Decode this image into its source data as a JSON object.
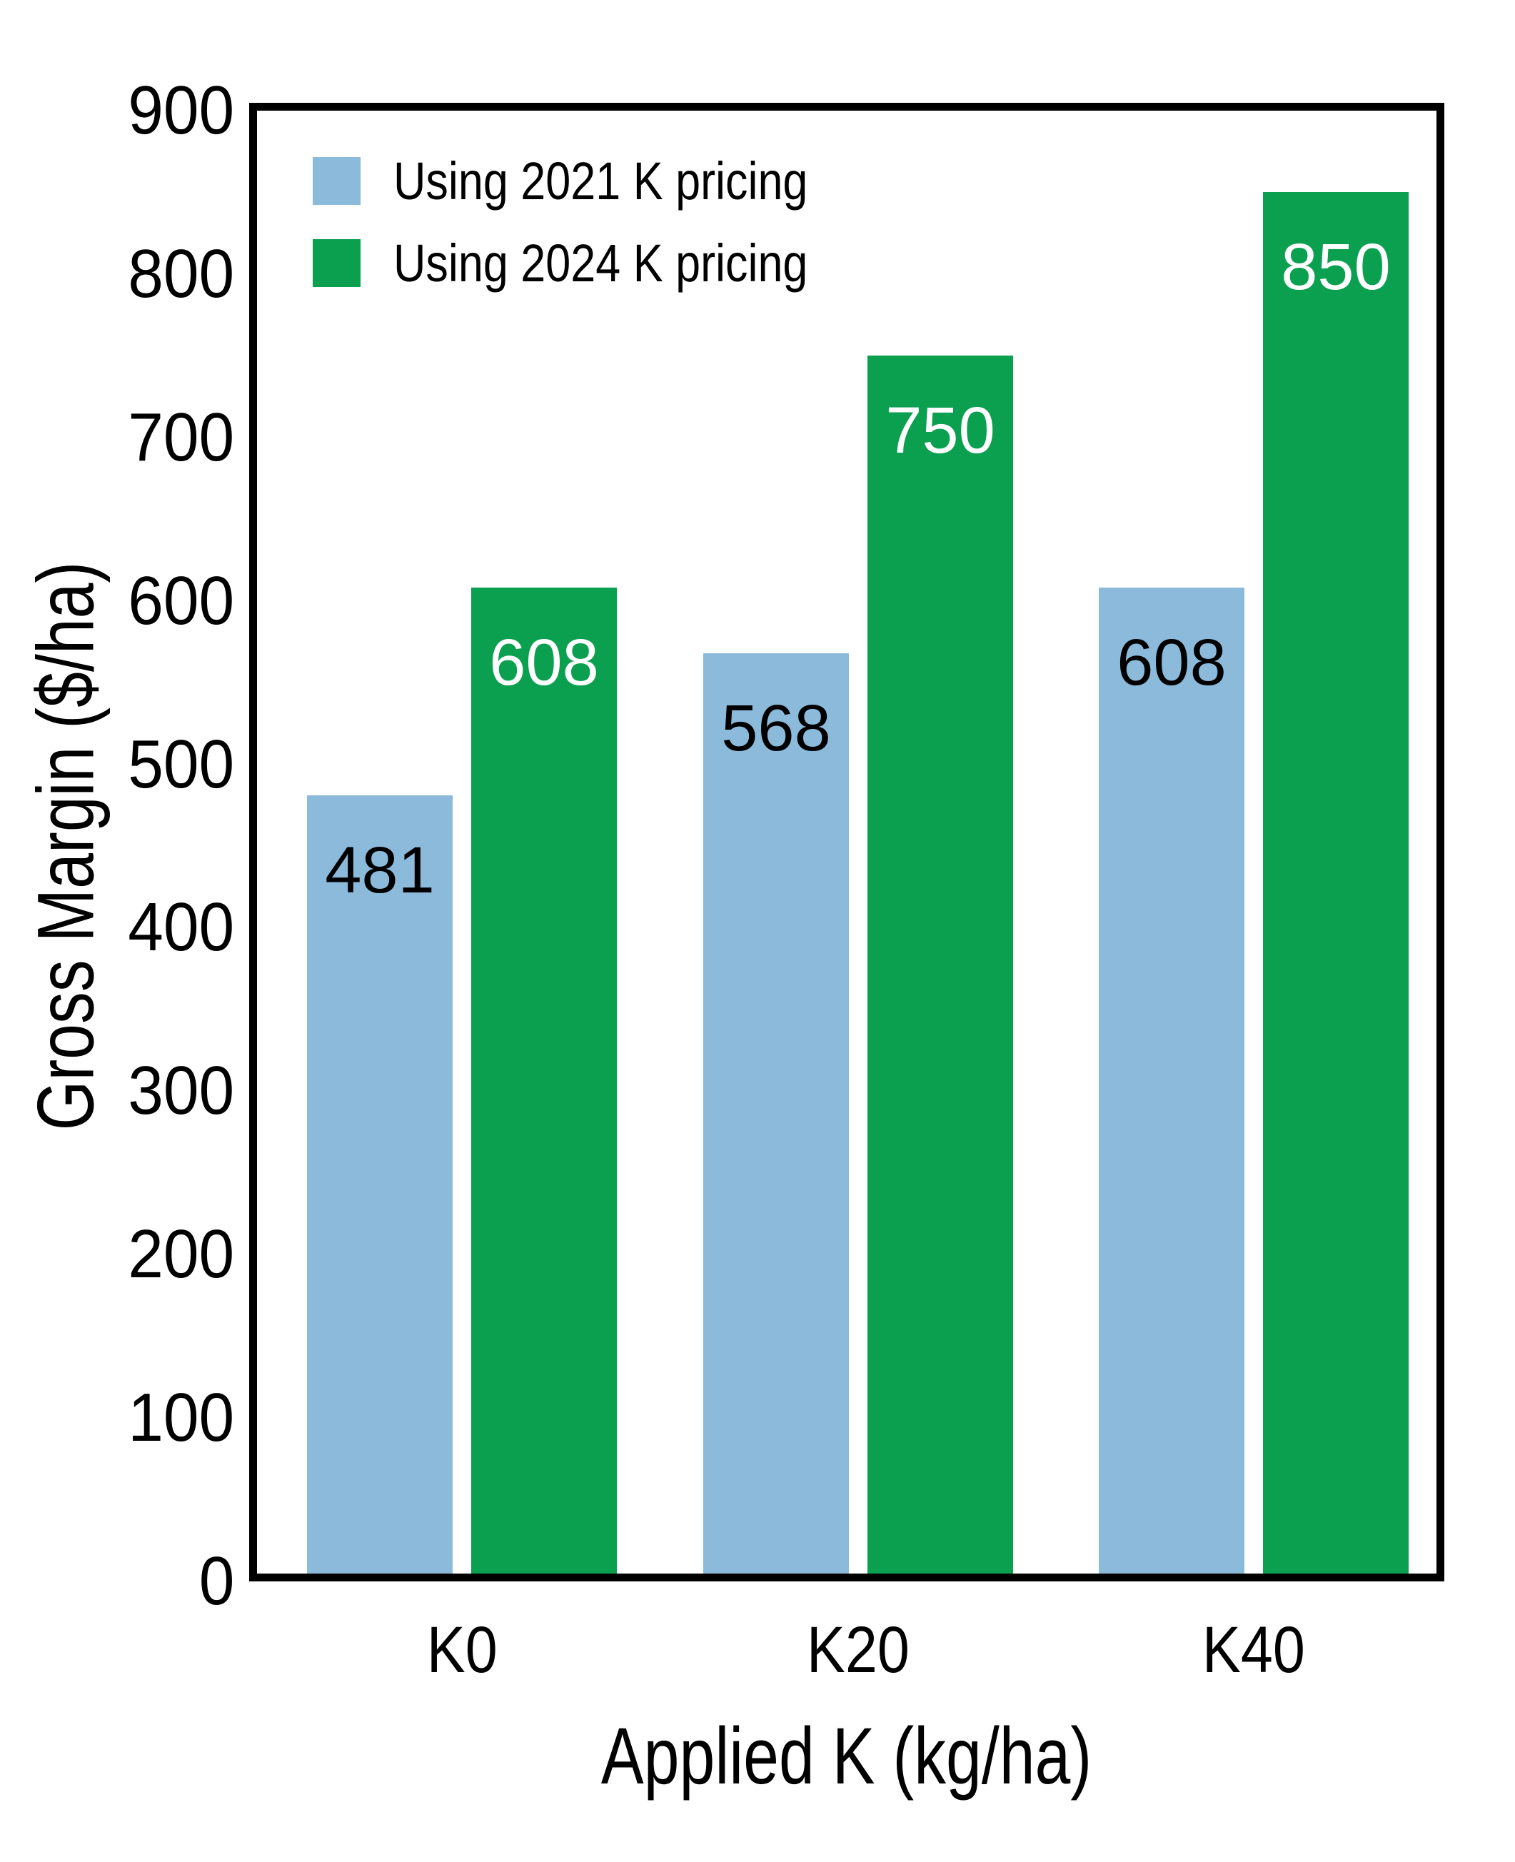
{
  "figure": {
    "background": "#ffffff",
    "frame_color": "#000000"
  },
  "chart_data": {
    "type": "bar",
    "title": "",
    "categories": [
      "K0",
      "K20",
      "K40"
    ],
    "series": [
      {
        "name": "Using 2021 K pricing",
        "color": "#8cbadb",
        "label_color": "#000000",
        "values": [
          481,
          568,
          608
        ]
      },
      {
        "name": "Using 2024 K pricing",
        "color": "#0aa04f",
        "label_color": "#ffffff",
        "values": [
          608,
          750,
          850
        ]
      }
    ],
    "bar_value_labels": [
      "481",
      "608",
      "568",
      "750",
      "608",
      "850"
    ],
    "xlabel": "Applied K (kg/ha)",
    "ylabel": "Gross Margin ($/ha)",
    "ylim": [
      0,
      900
    ],
    "y_ticks": [
      "0",
      "100",
      "200",
      "300",
      "400",
      "500",
      "600",
      "700",
      "800",
      "900"
    ],
    "grid": false,
    "legend_position": "top-left-inside",
    "bar_labels_on": true
  }
}
